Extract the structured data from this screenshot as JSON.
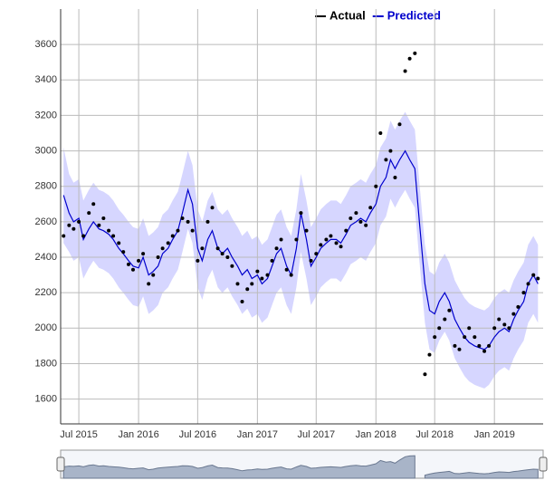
{
  "chart_data": {
    "type": "scatter-line",
    "legend": "top-right",
    "grid": true,
    "xlim": [
      "2015-05-06",
      "2019-05-31"
    ],
    "xticks": [
      {
        "value": "2015-07-01",
        "label": "Jul 2015"
      },
      {
        "value": "2016-01-01",
        "label": "Jan 2016"
      },
      {
        "value": "2016-07-01",
        "label": "Jul 2016"
      },
      {
        "value": "2017-01-01",
        "label": "Jan 2017"
      },
      {
        "value": "2017-07-01",
        "label": "Jul 2017"
      },
      {
        "value": "2018-01-01",
        "label": "Jan 2018"
      },
      {
        "value": "2018-07-01",
        "label": "Jul 2018"
      },
      {
        "value": "2019-01-01",
        "label": "Jan 2019"
      }
    ],
    "ylim": [
      1460,
      3800
    ],
    "yticks": [
      1600,
      1800,
      2000,
      2200,
      2400,
      2600,
      2800,
      3000,
      3200,
      3400,
      3600
    ],
    "x": [
      "2015-05-15",
      "2015-06-01",
      "2015-06-15",
      "2015-07-01",
      "2015-07-15",
      "2015-08-01",
      "2015-08-15",
      "2015-09-01",
      "2015-09-15",
      "2015-10-01",
      "2015-10-15",
      "2015-11-01",
      "2015-11-15",
      "2015-12-01",
      "2015-12-15",
      "2016-01-01",
      "2016-01-15",
      "2016-02-01",
      "2016-02-15",
      "2016-03-01",
      "2016-03-15",
      "2016-04-01",
      "2016-04-15",
      "2016-05-01",
      "2016-05-15",
      "2016-06-01",
      "2016-06-15",
      "2016-07-01",
      "2016-07-15",
      "2016-08-01",
      "2016-08-15",
      "2016-09-01",
      "2016-09-15",
      "2016-10-01",
      "2016-10-15",
      "2016-11-01",
      "2016-11-15",
      "2016-12-01",
      "2016-12-15",
      "2017-01-01",
      "2017-01-15",
      "2017-02-01",
      "2017-02-15",
      "2017-03-01",
      "2017-03-15",
      "2017-04-01",
      "2017-04-15",
      "2017-05-01",
      "2017-05-15",
      "2017-06-01",
      "2017-06-15",
      "2017-07-01",
      "2017-07-15",
      "2017-08-01",
      "2017-08-15",
      "2017-09-01",
      "2017-09-15",
      "2017-10-01",
      "2017-10-15",
      "2017-11-01",
      "2017-11-15",
      "2017-12-01",
      "2017-12-15",
      "2018-01-01",
      "2018-01-15",
      "2018-02-01",
      "2018-02-15",
      "2018-03-01",
      "2018-03-15",
      "2018-04-01",
      "2018-04-15",
      "2018-05-01",
      "2018-05-15",
      "2018-06-01",
      "2018-06-15",
      "2018-07-01",
      "2018-07-15",
      "2018-08-01",
      "2018-08-15",
      "2018-09-01",
      "2018-09-15",
      "2018-10-01",
      "2018-10-15",
      "2018-11-01",
      "2018-11-15",
      "2018-12-01",
      "2018-12-15",
      "2019-01-01",
      "2019-01-15",
      "2019-02-01",
      "2019-02-15",
      "2019-03-01",
      "2019-03-15",
      "2019-04-01",
      "2019-04-15",
      "2019-05-01",
      "2019-05-15"
    ],
    "series": [
      {
        "name": "Actual",
        "color": "#000000",
        "values": [
          2520,
          2580,
          2560,
          2600,
          2520,
          2650,
          2700,
          2580,
          2620,
          2550,
          2520,
          2480,
          2430,
          2360,
          2330,
          2380,
          2420,
          2250,
          2300,
          2400,
          2450,
          2480,
          2520,
          2550,
          2620,
          2600,
          2550,
          2380,
          2450,
          2600,
          2680,
          2450,
          2420,
          2400,
          2350,
          2250,
          2150,
          2220,
          2250,
          2320,
          2280,
          2300,
          2380,
          2450,
          2500,
          2330,
          2300,
          2500,
          2650,
          2550,
          2380,
          2420,
          2470,
          2500,
          2520,
          2480,
          2460,
          2550,
          2620,
          2650,
          2600,
          2580,
          2680,
          2800,
          3100,
          2950,
          3000,
          2850,
          3150,
          3450,
          3520,
          3550,
          null,
          1740,
          1850,
          1950,
          2000,
          2050,
          2100,
          1900,
          1880,
          1950,
          2000,
          1950,
          1900,
          1870,
          1900,
          2000,
          2050,
          2020,
          2000,
          2080,
          2120,
          2200,
          2250,
          2300,
          2280
        ]
      },
      {
        "name": "Predicted",
        "color": "#0000cc",
        "values": [
          2750,
          2650,
          2600,
          2620,
          2500,
          2560,
          2600,
          2560,
          2550,
          2530,
          2500,
          2450,
          2420,
          2380,
          2350,
          2340,
          2400,
          2300,
          2320,
          2350,
          2420,
          2450,
          2500,
          2550,
          2650,
          2780,
          2700,
          2450,
          2380,
          2500,
          2550,
          2450,
          2420,
          2450,
          2400,
          2350,
          2300,
          2330,
          2280,
          2300,
          2250,
          2280,
          2350,
          2420,
          2450,
          2350,
          2300,
          2450,
          2650,
          2500,
          2350,
          2400,
          2450,
          2480,
          2500,
          2500,
          2480,
          2530,
          2580,
          2600,
          2620,
          2600,
          2650,
          2700,
          2800,
          2850,
          2950,
          2900,
          2950,
          3000,
          2950,
          2900,
          2600,
          2250,
          2100,
          2080,
          2150,
          2200,
          2150,
          2050,
          2000,
          1950,
          1920,
          1900,
          1890,
          1880,
          1900,
          1950,
          1980,
          2000,
          1980,
          2050,
          2100,
          2150,
          2250,
          2300,
          2250
        ]
      }
    ],
    "band": {
      "color": "#ccccff",
      "upper": [
        3020,
        2870,
        2820,
        2840,
        2720,
        2780,
        2820,
        2780,
        2770,
        2750,
        2720,
        2670,
        2640,
        2600,
        2570,
        2560,
        2620,
        2520,
        2540,
        2570,
        2640,
        2670,
        2720,
        2770,
        2870,
        3000,
        2920,
        2670,
        2600,
        2720,
        2770,
        2670,
        2640,
        2670,
        2620,
        2570,
        2520,
        2550,
        2500,
        2520,
        2470,
        2500,
        2570,
        2640,
        2670,
        2570,
        2520,
        2670,
        2870,
        2720,
        2570,
        2620,
        2670,
        2700,
        2720,
        2720,
        2700,
        2750,
        2800,
        2820,
        2840,
        2820,
        2870,
        2920,
        3020,
        3070,
        3170,
        3120,
        3170,
        3220,
        3170,
        3120,
        2820,
        2470,
        2320,
        2300,
        2370,
        2420,
        2370,
        2270,
        2220,
        2170,
        2140,
        2120,
        2110,
        2100,
        2120,
        2170,
        2200,
        2220,
        2200,
        2270,
        2320,
        2370,
        2470,
        2520,
        2470
      ],
      "lower": [
        2480,
        2430,
        2380,
        2400,
        2280,
        2340,
        2380,
        2340,
        2330,
        2310,
        2280,
        2230,
        2200,
        2160,
        2130,
        2120,
        2180,
        2080,
        2100,
        2130,
        2200,
        2230,
        2280,
        2330,
        2430,
        2560,
        2480,
        2230,
        2160,
        2280,
        2330,
        2230,
        2200,
        2230,
        2180,
        2130,
        2080,
        2110,
        2060,
        2080,
        2030,
        2060,
        2130,
        2200,
        2230,
        2130,
        2080,
        2230,
        2430,
        2280,
        2130,
        2180,
        2230,
        2260,
        2280,
        2280,
        2260,
        2310,
        2360,
        2380,
        2400,
        2380,
        2430,
        2480,
        2580,
        2630,
        2730,
        2680,
        2730,
        2780,
        2730,
        2680,
        2380,
        2030,
        1880,
        1860,
        1930,
        1980,
        1930,
        1830,
        1780,
        1730,
        1700,
        1680,
        1670,
        1660,
        1680,
        1730,
        1760,
        1780,
        1760,
        1830,
        1880,
        1930,
        2030,
        2080,
        2030
      ]
    }
  }
}
